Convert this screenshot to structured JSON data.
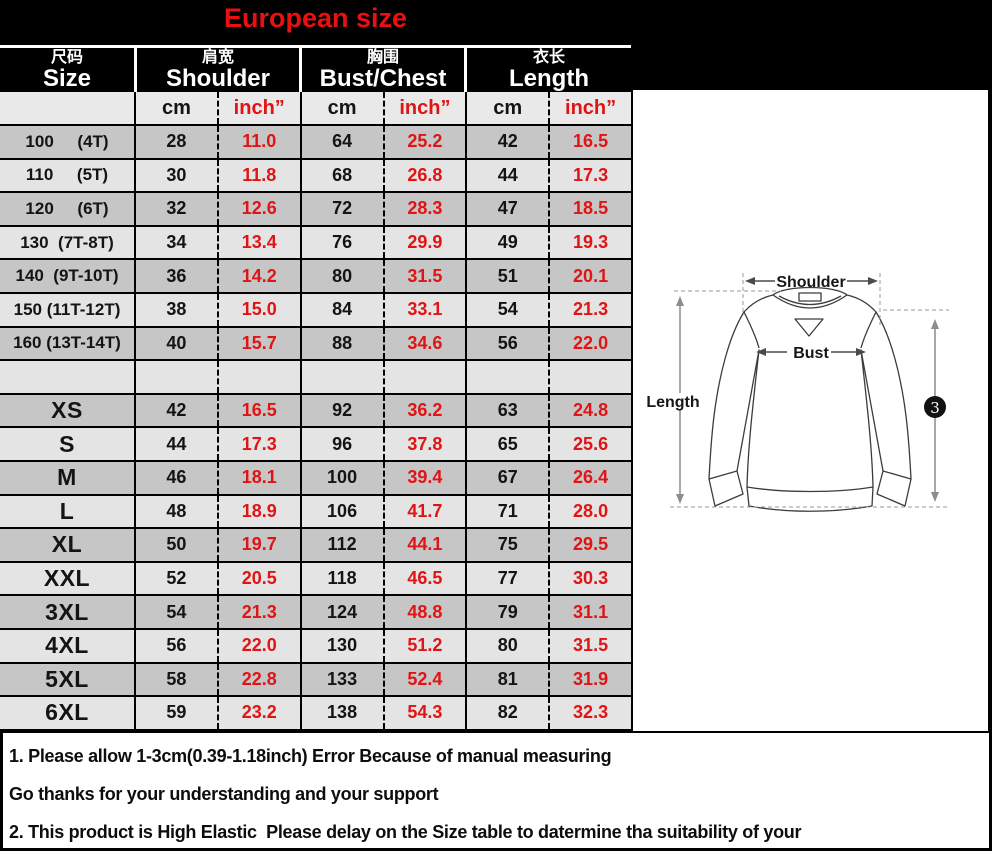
{
  "title": "European size",
  "colors": {
    "accent_red": "#e01414",
    "row_dark": "#c6c6c6",
    "row_light": "#e4e4e4",
    "header_bg": "#000000",
    "header_text": "#ffffff"
  },
  "table": {
    "columns": [
      {
        "cn": "尺码",
        "en": "Size"
      },
      {
        "cn": "肩宽",
        "en": "Shoulder"
      },
      {
        "cn": "胸围",
        "en": "Bust/Chest"
      },
      {
        "cn": "衣长",
        "en": "Length"
      }
    ],
    "unit_cm": "cm",
    "unit_inch": "inch”",
    "rows": [
      {
        "size": "100     (4T)",
        "kid": true,
        "values": [
          "28",
          "11.0",
          "64",
          "25.2",
          "42",
          "16.5"
        ]
      },
      {
        "size": "110     (5T)",
        "kid": true,
        "values": [
          "30",
          "11.8",
          "68",
          "26.8",
          "44",
          "17.3"
        ]
      },
      {
        "size": "120     (6T)",
        "kid": true,
        "values": [
          "32",
          "12.6",
          "72",
          "28.3",
          "47",
          "18.5"
        ]
      },
      {
        "size": "130  (7T-8T)",
        "kid": true,
        "values": [
          "34",
          "13.4",
          "76",
          "29.9",
          "49",
          "19.3"
        ]
      },
      {
        "size": "140  (9T-10T)",
        "kid": true,
        "values": [
          "36",
          "14.2",
          "80",
          "31.5",
          "51",
          "20.1"
        ]
      },
      {
        "size": "150 (11T-12T)",
        "kid": true,
        "values": [
          "38",
          "15.0",
          "84",
          "33.1",
          "54",
          "21.3"
        ]
      },
      {
        "size": "160 (13T-14T)",
        "kid": true,
        "values": [
          "40",
          "15.7",
          "88",
          "34.6",
          "56",
          "22.0"
        ]
      },
      {
        "size": "",
        "spacer": true,
        "values": [
          "",
          "",
          "",
          "",
          "",
          ""
        ]
      },
      {
        "size": "XS",
        "values": [
          "42",
          "16.5",
          "92",
          "36.2",
          "63",
          "24.8"
        ]
      },
      {
        "size": "S",
        "values": [
          "44",
          "17.3",
          "96",
          "37.8",
          "65",
          "25.6"
        ]
      },
      {
        "size": "M",
        "values": [
          "46",
          "18.1",
          "100",
          "39.4",
          "67",
          "26.4"
        ]
      },
      {
        "size": "L",
        "values": [
          "48",
          "18.9",
          "106",
          "41.7",
          "71",
          "28.0"
        ]
      },
      {
        "size": "XL",
        "values": [
          "50",
          "19.7",
          "112",
          "44.1",
          "75",
          "29.5"
        ]
      },
      {
        "size": "XXL",
        "values": [
          "52",
          "20.5",
          "118",
          "46.5",
          "77",
          "30.3"
        ]
      },
      {
        "size": "3XL",
        "values": [
          "54",
          "21.3",
          "124",
          "48.8",
          "79",
          "31.1"
        ]
      },
      {
        "size": "4XL",
        "values": [
          "56",
          "22.0",
          "130",
          "51.2",
          "80",
          "31.5"
        ]
      },
      {
        "size": "5XL",
        "values": [
          "58",
          "22.8",
          "133",
          "52.4",
          "81",
          "31.9"
        ]
      },
      {
        "size": "6XL",
        "values": [
          "59",
          "23.2",
          "138",
          "54.3",
          "82",
          "32.3"
        ]
      }
    ]
  },
  "diagram": {
    "shoulder_label": "Shoulder",
    "bust_label": "Bust",
    "length_label": "Length",
    "badge": "3"
  },
  "notes": [
    "1. Please allow 1-3cm(0.39-1.18inch) Error Because of manual measuring",
    "Go thanks for your understanding and your support",
    "2. This product is High Elastic  Please delay on the Size table to datermine tha suitability of your"
  ]
}
